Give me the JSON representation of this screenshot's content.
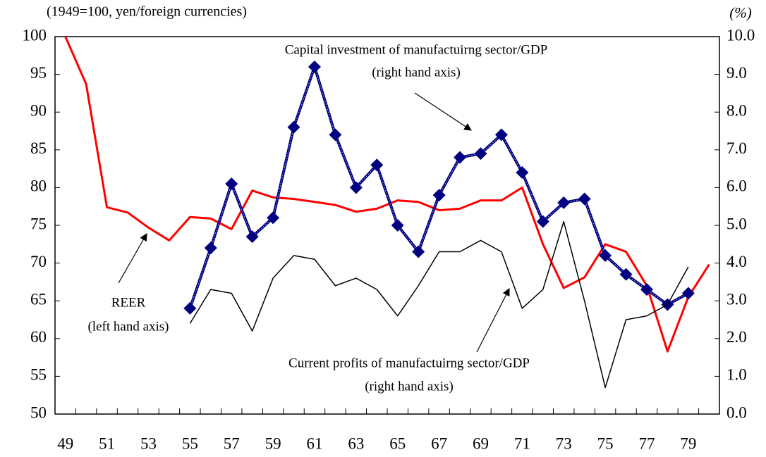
{
  "chart_data": {
    "type": "line",
    "title": "(1949=100, yen/foreign currencies)",
    "y2_unit": "(%)",
    "x": [
      49,
      50,
      51,
      52,
      53,
      54,
      55,
      56,
      57,
      58,
      59,
      60,
      61,
      62,
      63,
      64,
      65,
      66,
      67,
      68,
      69,
      70,
      71,
      72,
      73,
      74,
      75,
      76,
      77,
      78,
      79,
      80
    ],
    "xlim": [
      48.5,
      80.5
    ],
    "xticks": [
      49,
      51,
      53,
      55,
      57,
      59,
      61,
      63,
      65,
      67,
      69,
      71,
      73,
      75,
      77,
      79
    ],
    "ylim": [
      50,
      100
    ],
    "yticks": [
      50,
      55,
      60,
      65,
      70,
      75,
      80,
      85,
      90,
      95,
      100
    ],
    "y2lim": [
      0,
      10
    ],
    "y2ticks": [
      {
        "value": 0,
        "label": "0.0"
      },
      {
        "value": 1,
        "label": "1.0"
      },
      {
        "value": 2,
        "label": "2.0"
      },
      {
        "value": 3,
        "label": "3.0"
      },
      {
        "value": 4,
        "label": "4.0"
      },
      {
        "value": 5,
        "label": "5.0"
      },
      {
        "value": 6,
        "label": "6.0"
      },
      {
        "value": 7,
        "label": "7.0"
      },
      {
        "value": 8,
        "label": "8.0"
      },
      {
        "value": 9,
        "label": "9.0"
      },
      {
        "value": 10,
        "label": "10.0"
      }
    ],
    "series": [
      {
        "name": "REER",
        "color": "#ff0000",
        "axis": "y",
        "marker": "none",
        "values": [
          100,
          93.7,
          77.4,
          76.7,
          74.7,
          73,
          76.1,
          75.9,
          74.5,
          79.6,
          78.7,
          78.5,
          78.1,
          77.7,
          76.8,
          77.2,
          78.3,
          78.1,
          77,
          77.2,
          78.3,
          78.3,
          80,
          72.5,
          66.7,
          68.1,
          72.5,
          71.5,
          67,
          58.3,
          65.5,
          69.8
        ]
      },
      {
        "name": "Capital investment of manufactuirng sector/GDP",
        "color": "#000080",
        "axis": "y2",
        "marker": "diamond",
        "values": [
          null,
          null,
          null,
          null,
          null,
          null,
          2.8,
          4.4,
          6.1,
          4.7,
          5.2,
          7.6,
          9.2,
          7.4,
          6.0,
          6.6,
          5.0,
          4.3,
          5.8,
          6.8,
          6.9,
          7.4,
          6.4,
          5.1,
          5.6,
          5.7,
          4.2,
          3.7,
          3.3,
          2.9,
          3.2,
          null
        ]
      },
      {
        "name": "Current profits of manufactuirng sector/GDP",
        "color": "#000000",
        "axis": "y2",
        "marker": "none",
        "values": [
          null,
          null,
          null,
          null,
          null,
          null,
          2.4,
          3.3,
          3.2,
          2.2,
          3.6,
          4.2,
          4.1,
          3.4,
          3.6,
          3.3,
          2.6,
          3.4,
          4.3,
          4.3,
          4.6,
          4.3,
          2.8,
          3.3,
          5.1,
          3.0,
          0.7,
          2.5,
          2.6,
          2.9,
          3.9,
          null
        ]
      }
    ],
    "annotations": [
      "Capital investment of manufactuirng sector/GDP",
      "(right hand axis)",
      "REER",
      "(left hand axis)",
      "Current profits of manufactuirng sector/GDP",
      "(right hand axis)"
    ]
  }
}
